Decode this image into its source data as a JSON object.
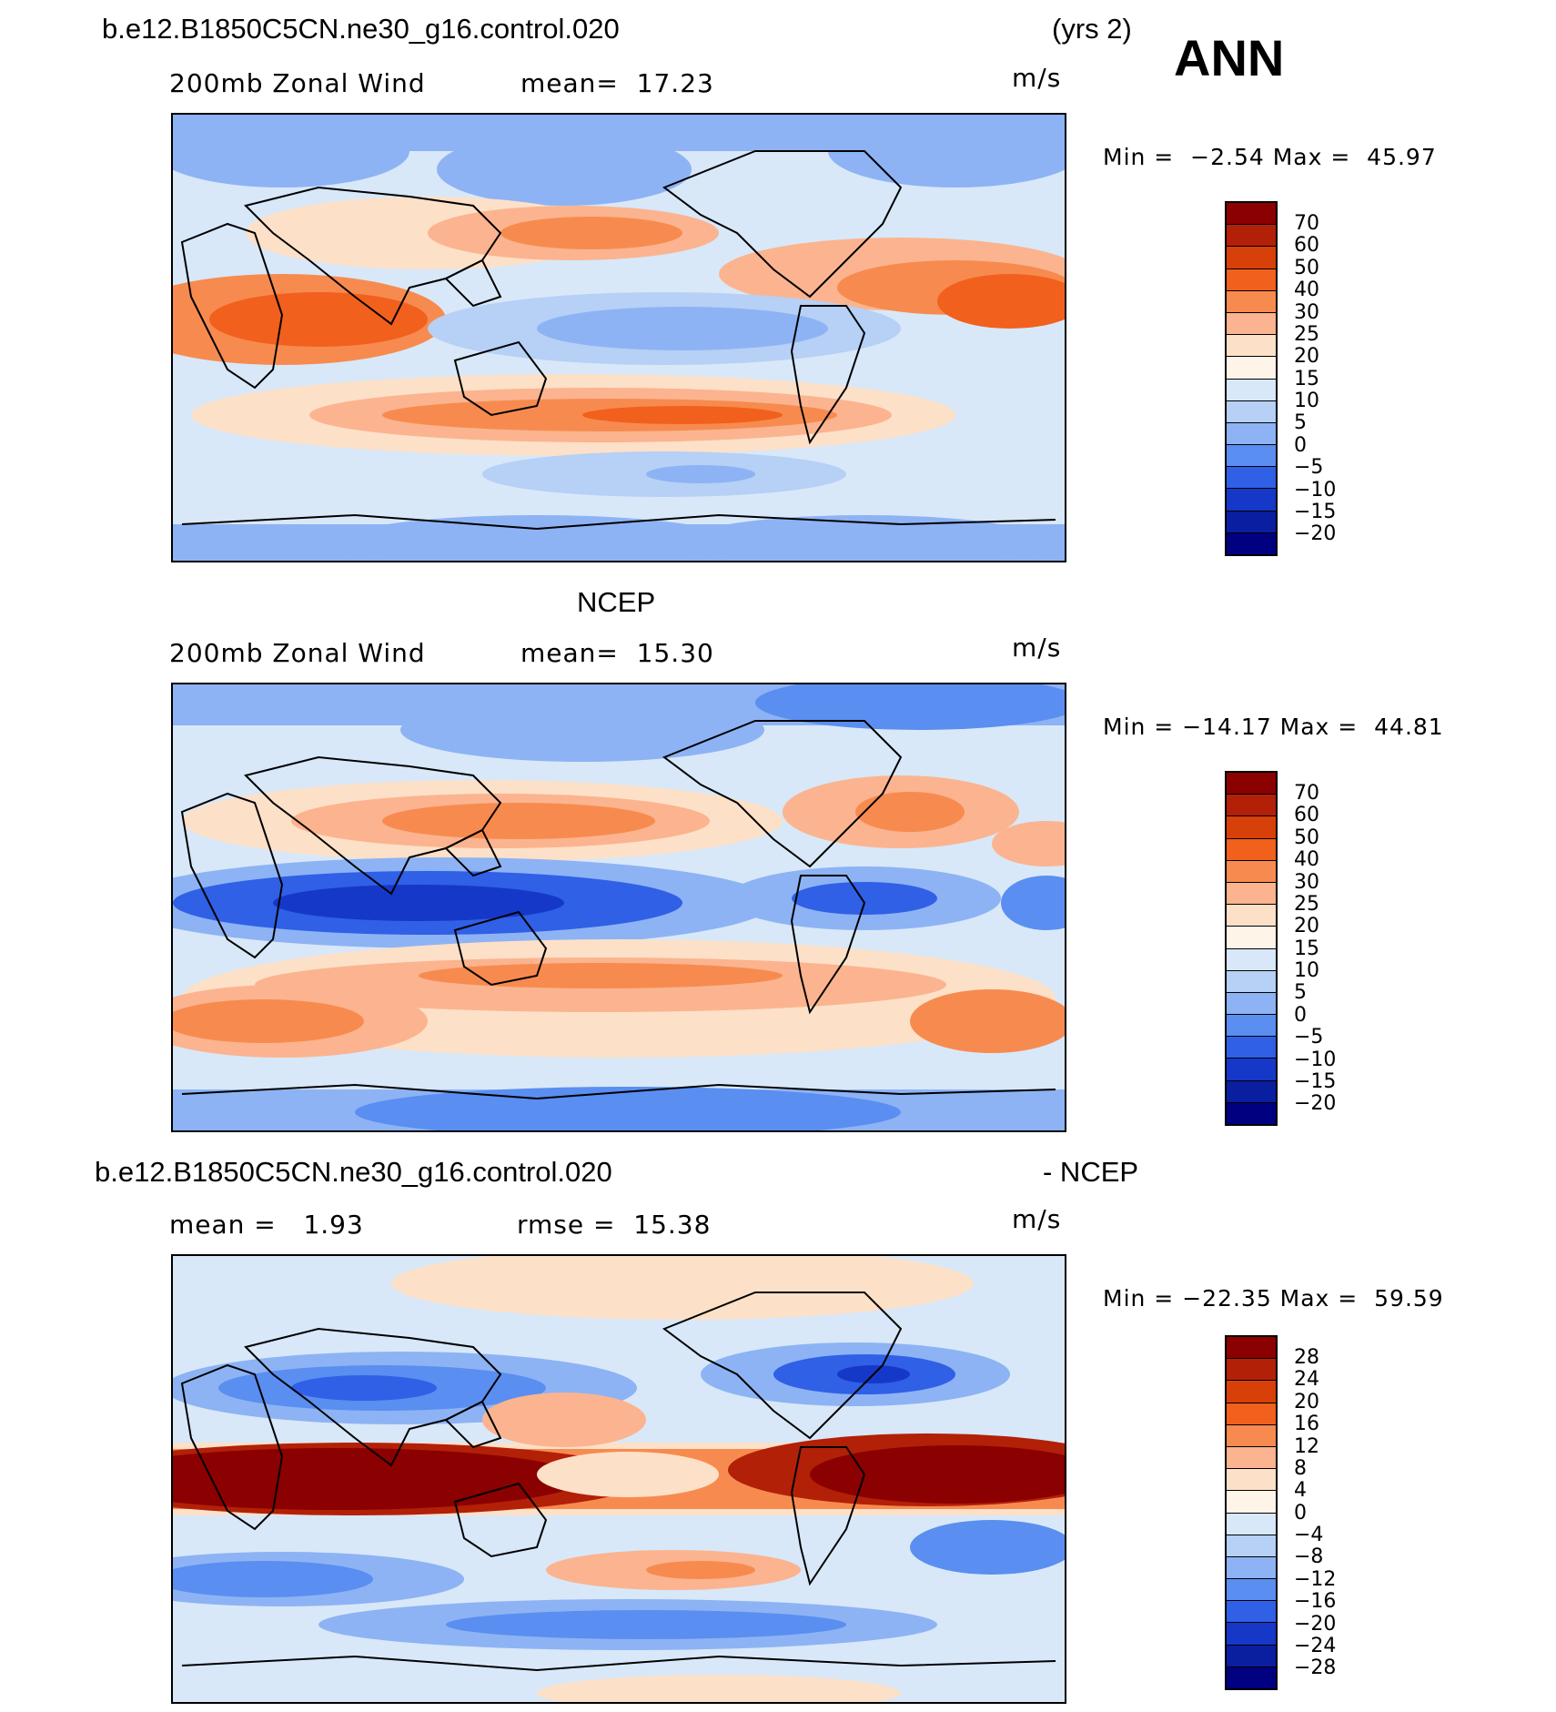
{
  "header": {
    "case_name": "b.e12.B1850C5CN.ne30_g16.control.020",
    "years": "(yrs 2)",
    "season": "ANN"
  },
  "panels": [
    {
      "id": "model",
      "title": "",
      "left_label": "200mb Zonal Wind",
      "mid_label": "mean=  17.23",
      "units": "m/s",
      "min_max": "Min =  −2.54 Max =  45.97",
      "colorbar_labels": [
        "70",
        "60",
        "50",
        "40",
        "30",
        "25",
        "20",
        "15",
        "10",
        "5",
        "0",
        "−5",
        "−10",
        "−15",
        "−20"
      ]
    },
    {
      "id": "obs",
      "title": "NCEP",
      "left_label": "200mb Zonal Wind",
      "mid_label": "mean=  15.30",
      "units": "m/s",
      "min_max": "Min = −14.17 Max =  44.81",
      "colorbar_labels": [
        "70",
        "60",
        "50",
        "40",
        "30",
        "25",
        "20",
        "15",
        "10",
        "5",
        "0",
        "−5",
        "−10",
        "−15",
        "−20"
      ]
    },
    {
      "id": "diff",
      "title_left": "b.e12.B1850C5CN.ne30_g16.control.020",
      "title_right": "- NCEP",
      "left_label": "mean =   1.93",
      "mid_label": "rmse =  15.38",
      "units": "m/s",
      "min_max": "Min = −22.35 Max =  59.59",
      "colorbar_labels": [
        "28",
        "24",
        "20",
        "16",
        "12",
        "8",
        "4",
        "0",
        "−4",
        "−8",
        "−12",
        "−16",
        "−20",
        "−24",
        "−28"
      ]
    }
  ],
  "colors": {
    "abs_scale": [
      "#8b0000",
      "#b22008",
      "#d8400a",
      "#f2601d",
      "#f78b4f",
      "#fbb48f",
      "#fde0c8",
      "#fff4e8",
      "#d8e8f8",
      "#b6d0f6",
      "#8db3f4",
      "#5a8ef0",
      "#2f60e6",
      "#1638c8",
      "#0a1ea0",
      "#000080"
    ],
    "diff_scale": [
      "#8b0000",
      "#b22008",
      "#d8400a",
      "#f2601d",
      "#f78b4f",
      "#fbb48f",
      "#fde0c8",
      "#fff4e8",
      "#d8e8f8",
      "#b6d0f6",
      "#8db3f4",
      "#5a8ef0",
      "#2f60e6",
      "#1638c8",
      "#0a1ea0",
      "#000080"
    ]
  }
}
